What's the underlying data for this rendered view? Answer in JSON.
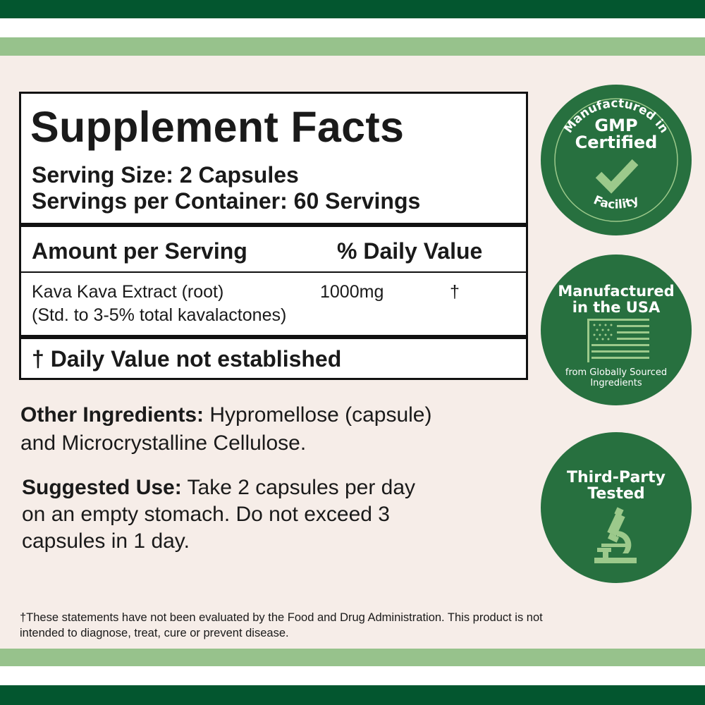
{
  "colors": {
    "dark_green": "#03562f",
    "light_green": "#97c28c",
    "background": "#f6ede8",
    "badge_green": "#27703f",
    "badge_accent": "#9cc98b"
  },
  "facts": {
    "title": "Supplement Facts",
    "serving_size": "Serving Size: 2 Capsules",
    "servings_per_container": "Servings per Container: 60 Servings",
    "header_amount": "Amount per Serving",
    "header_dv": "% Daily Value",
    "ingredient": {
      "name": "Kava Kava Extract (root)",
      "detail": "(Std. to 3-5% total kavalactones)",
      "amount": "1000mg",
      "dv": "†"
    },
    "dv_note": "† Daily Value not established"
  },
  "other_ingredients": {
    "label": "Other Ingredients:",
    "line1": " Hypromellose (capsule)",
    "line2": "and Microcrystalline Cellulose."
  },
  "suggested_use": {
    "label": "Suggested Use:",
    "line1": " Take 2 capsules per day",
    "line2": "on an empty stomach. Do not exceed 3",
    "line3": "capsules in 1 day."
  },
  "disclaimer": {
    "line1": "†These statements have not been evaluated by the Food and Drug Administration. This product is not",
    "line2": "intended to diagnose, treat, cure or prevent disease."
  },
  "badges": [
    {
      "top": "Manufactured in",
      "title1": "GMP",
      "title2": "Certified",
      "bottom": "Facility",
      "icon": "checkmark-icon"
    },
    {
      "title1": "Manufactured",
      "title2": "in the USA",
      "sub1": "from Globally Sourced",
      "sub2": "Ingredients",
      "icon": "us-flag-icon"
    },
    {
      "title1": "Third-Party",
      "title2": "Tested",
      "icon": "microscope-icon"
    }
  ]
}
